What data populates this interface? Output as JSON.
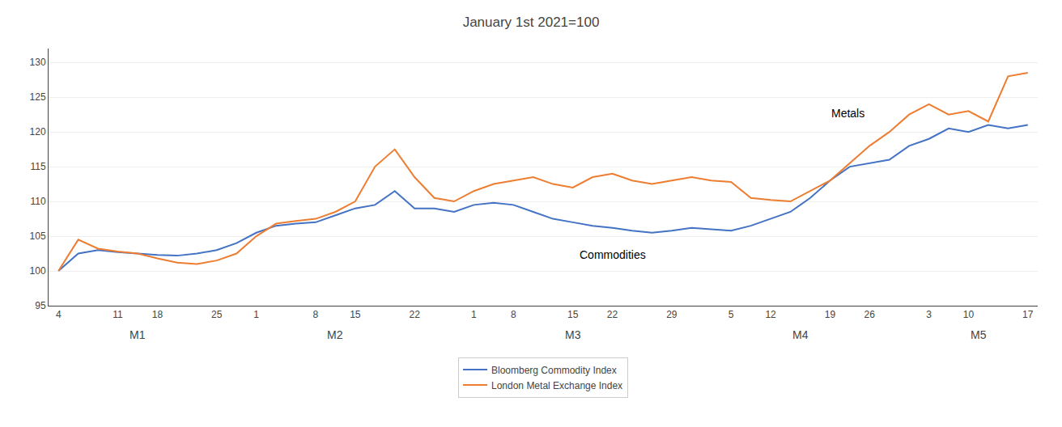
{
  "chart_data": {
    "type": "line",
    "title": "January 1st 2021=100",
    "categories": [
      "4",
      null,
      null,
      "11",
      null,
      "18",
      null,
      null,
      "25",
      null,
      "1",
      null,
      null,
      "8",
      null,
      "15",
      null,
      null,
      "22",
      null,
      null,
      "1",
      null,
      "8",
      null,
      null,
      "15",
      null,
      "22",
      null,
      null,
      "29",
      null,
      null,
      "5",
      null,
      "12",
      null,
      null,
      "19",
      null,
      "26",
      null,
      null,
      "3",
      null,
      "10",
      null,
      null,
      "17"
    ],
    "series": [
      {
        "name": "Bloomberg Commodity Index",
        "color": "#4472c4",
        "values": [
          100.0,
          102.5,
          103.0,
          102.7,
          102.5,
          102.3,
          102.2,
          102.5,
          103.0,
          104.0,
          105.5,
          106.5,
          106.8,
          107.0,
          108.0,
          109.0,
          109.5,
          111.5,
          109.0,
          109.0,
          108.5,
          109.5,
          109.8,
          109.5,
          108.5,
          107.5,
          107.0,
          106.5,
          106.2,
          105.8,
          105.5,
          105.8,
          106.2,
          106.0,
          105.8,
          106.5,
          107.5,
          108.5,
          110.5,
          113.0,
          115.0,
          115.5,
          116.0,
          118.0,
          119.0,
          120.5,
          120.0,
          121.0,
          120.5,
          121.0
        ]
      },
      {
        "name": "London Metal Exchange Index",
        "color": "#ed7d31",
        "values": [
          100.0,
          104.5,
          103.2,
          102.8,
          102.5,
          101.8,
          101.2,
          101.0,
          101.5,
          102.5,
          105.0,
          106.8,
          107.2,
          107.5,
          108.5,
          110.0,
          115.0,
          117.5,
          113.5,
          110.5,
          110.0,
          111.5,
          112.5,
          113.0,
          113.5,
          112.5,
          112.0,
          113.5,
          114.0,
          113.0,
          112.5,
          113.0,
          113.5,
          113.0,
          112.8,
          110.5,
          110.2,
          110.0,
          111.5,
          113.0,
          115.5,
          118.0,
          120.0,
          122.5,
          124.0,
          122.5,
          123.0,
          121.5,
          128.0,
          128.5
        ]
      }
    ],
    "ylim": [
      95,
      132
    ],
    "yticks": [
      95,
      100,
      105,
      110,
      115,
      120,
      125,
      130
    ],
    "grid": true,
    "legend": "bottom",
    "month_labels": [
      "M1",
      "M2",
      "M3",
      "M4",
      "M5"
    ],
    "annotations": [
      {
        "text": "Commodities",
        "x": 28,
        "y": 103.5
      },
      {
        "text": "Metals",
        "x": 39,
        "y": 121.5
      }
    ]
  }
}
